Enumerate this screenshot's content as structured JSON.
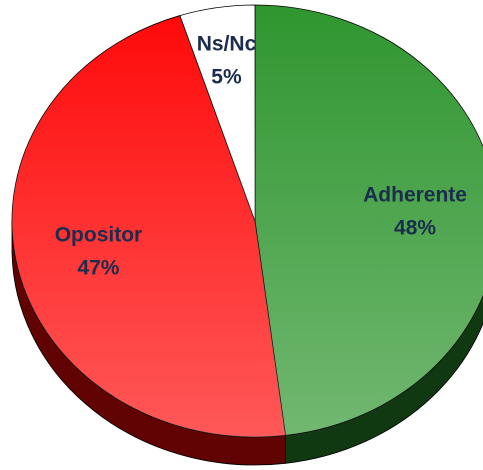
{
  "chart_data": {
    "type": "pie",
    "categories": [
      "Adherente",
      "Opositor",
      "Ns/Nc"
    ],
    "values": [
      48,
      47,
      5
    ],
    "value_labels": [
      "48%",
      "47%",
      "5%"
    ],
    "colors": [
      "#2f962f",
      "#ff0a0a",
      "#ffffff"
    ]
  }
}
